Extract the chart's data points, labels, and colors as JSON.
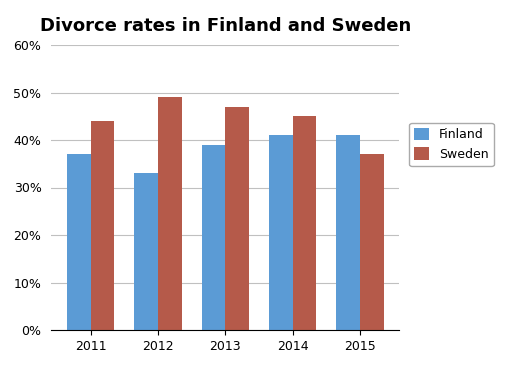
{
  "title": "Divorce rates in Finland and Sweden",
  "years": [
    "2011",
    "2012",
    "2013",
    "2014",
    "2015"
  ],
  "finland": [
    37,
    33,
    39,
    41,
    41
  ],
  "sweden": [
    44,
    49,
    47,
    45,
    37
  ],
  "finland_color": "#5B9BD5",
  "sweden_color": "#B55A4A",
  "ylim": [
    0,
    60
  ],
  "yticks": [
    0,
    10,
    20,
    30,
    40,
    50,
    60
  ],
  "ytick_labels": [
    "0%",
    "10%",
    "20%",
    "30%",
    "40%",
    "50%",
    "60%"
  ],
  "legend_finland": "Finland",
  "legend_sweden": "Sweden",
  "bar_width": 0.35,
  "background_color": "#ffffff",
  "plot_bg_color": "#ffffff",
  "grid_color": "#c0c0c0",
  "title_fontsize": 13,
  "tick_fontsize": 9,
  "legend_fontsize": 9
}
